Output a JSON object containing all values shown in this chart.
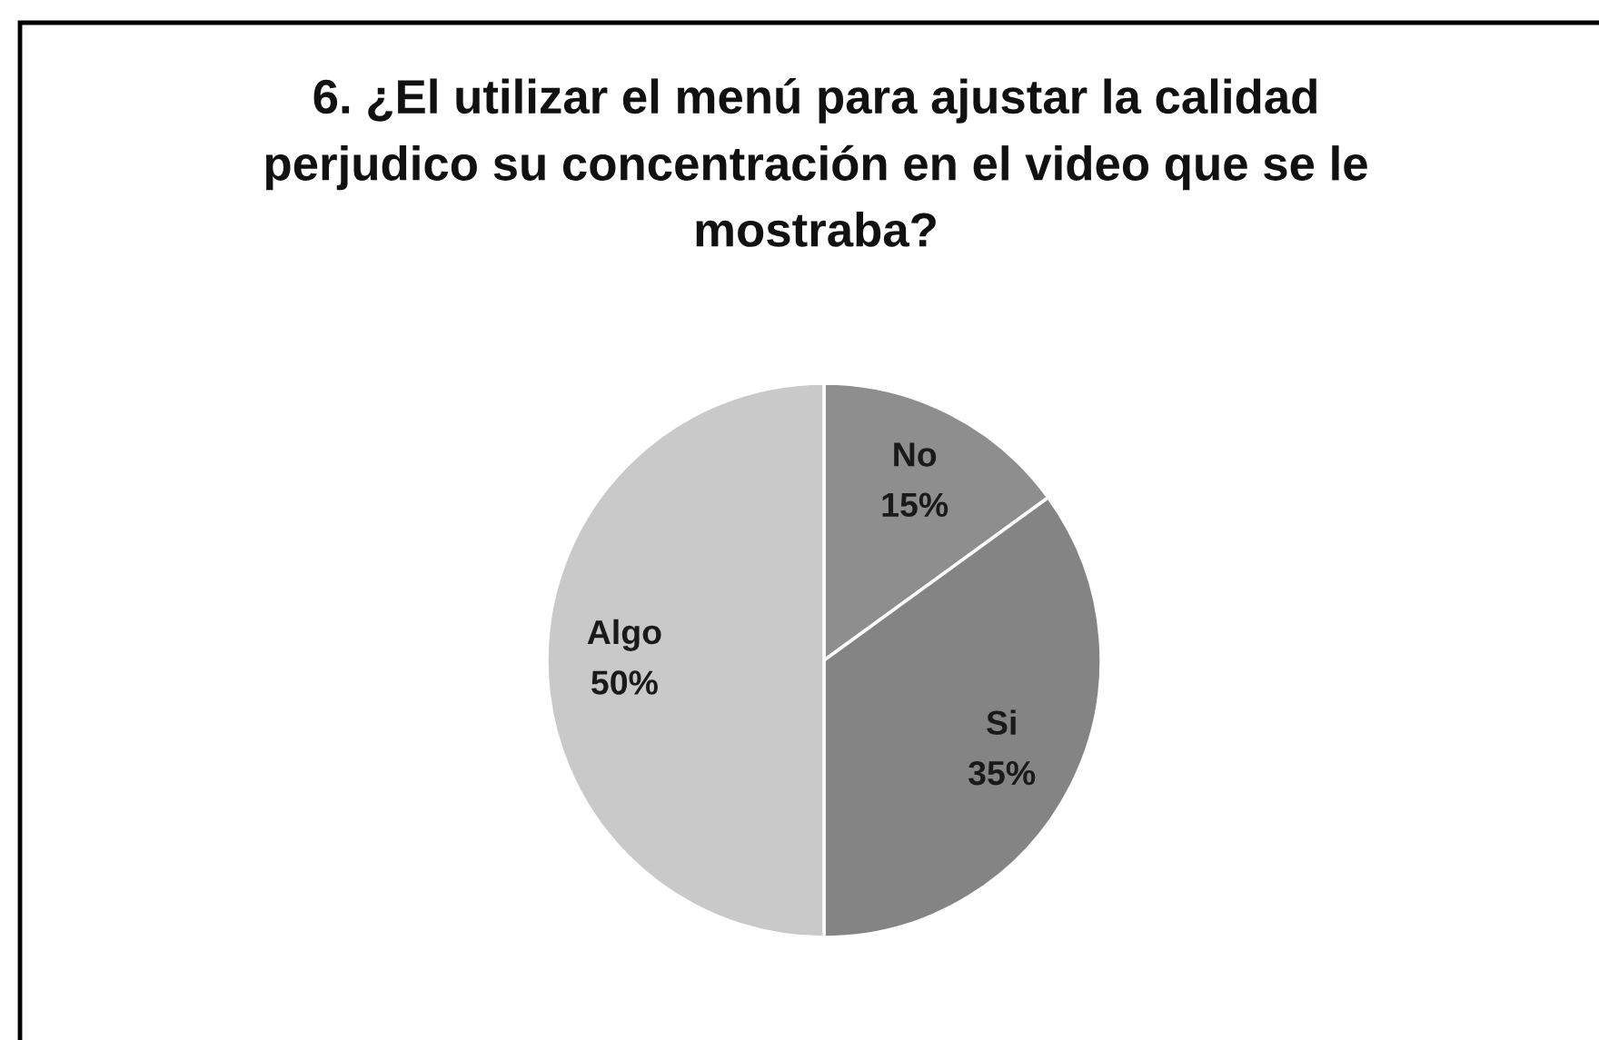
{
  "chart_data": {
    "type": "pie",
    "title": "6. ¿El utilizar el menú para ajustar la calidad\nperjudico su concentración en el video que se le\nmostraba?",
    "categories": [
      "No",
      "Si",
      "Algo"
    ],
    "values": [
      15,
      35,
      50
    ],
    "colors": [
      "#8e8e8e",
      "#848484",
      "#c9c9c9"
    ],
    "value_labels": [
      "15%",
      "35%",
      "50%"
    ]
  }
}
